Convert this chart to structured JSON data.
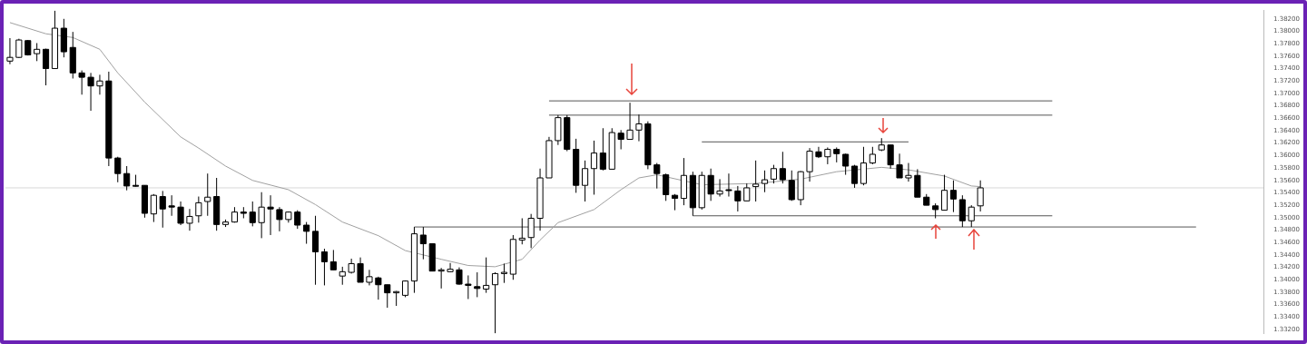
{
  "chart_data": {
    "type": "candlestick",
    "categories": [
      null,
      null,
      null,
      null,
      null,
      null,
      null,
      null,
      null,
      null,
      null,
      null,
      null,
      null,
      null,
      null,
      null,
      null,
      null,
      null,
      null,
      null,
      null,
      null,
      null,
      null,
      null,
      null,
      null,
      null,
      null,
      null,
      null,
      null,
      null,
      null,
      null,
      null,
      null,
      null,
      null,
      null,
      null,
      null,
      null,
      null,
      null,
      null,
      null,
      null,
      null,
      null,
      null,
      null,
      null,
      null,
      null,
      null,
      null,
      null,
      null,
      null,
      null,
      null,
      null,
      null,
      null,
      null,
      null,
      null,
      null,
      null,
      null,
      null,
      null,
      null,
      null,
      null,
      null,
      null,
      null,
      null,
      null,
      null,
      null,
      null,
      null,
      null,
      null,
      null,
      null,
      null,
      null,
      null,
      null,
      null,
      null,
      null,
      null,
      null,
      null,
      null,
      null,
      null,
      null,
      null,
      null,
      null,
      null,
      null,
      null,
      null,
      null,
      null,
      null,
      null,
      null,
      null,
      null,
      null,
      null,
      null,
      null,
      null,
      null,
      null,
      null,
      null,
      null,
      null,
      null,
      null,
      null,
      null,
      null,
      null,
      null,
      null,
      null,
      null
    ],
    "ohlc": [
      [
        1.3752,
        1.3789,
        1.3747,
        1.3758
      ],
      [
        1.3758,
        1.3788,
        1.3757,
        1.3786
      ],
      [
        1.3785,
        1.3786,
        1.3761,
        1.3762
      ],
      [
        1.3764,
        1.3781,
        1.3752,
        1.3771
      ],
      [
        1.3771,
        1.3772,
        1.3713,
        1.374
      ],
      [
        1.374,
        1.3833,
        1.374,
        1.3805
      ],
      [
        1.3805,
        1.382,
        1.3758,
        1.3767
      ],
      [
        1.3774,
        1.3799,
        1.3724,
        1.3733
      ],
      [
        1.3733,
        1.3737,
        1.3698,
        1.3726
      ],
      [
        1.3726,
        1.3733,
        1.3672,
        1.3712
      ],
      [
        1.3712,
        1.373,
        1.3698,
        1.372
      ],
      [
        1.372,
        1.3735,
        1.3583,
        1.3596
      ],
      [
        1.3596,
        1.3598,
        1.3557,
        1.3571
      ],
      [
        1.3571,
        1.3583,
        1.3544,
        1.3551
      ],
      [
        1.3552,
        1.3569,
        1.355,
        1.3551
      ],
      [
        1.3552,
        1.3552,
        1.35,
        1.3507
      ],
      [
        1.3506,
        1.3538,
        1.3493,
        1.3536
      ],
      [
        1.3534,
        1.3543,
        1.3484,
        1.3514
      ],
      [
        1.3519,
        1.3536,
        1.3503,
        1.3517
      ],
      [
        1.3517,
        1.3526,
        1.3488,
        1.3491
      ],
      [
        1.3491,
        1.3514,
        1.3479,
        1.3502
      ],
      [
        1.3503,
        1.3534,
        1.3492,
        1.3524
      ],
      [
        1.3526,
        1.3571,
        1.3503,
        1.3533
      ],
      [
        1.3534,
        1.3564,
        1.3479,
        1.3489
      ],
      [
        1.3489,
        1.3497,
        1.3485,
        1.3493
      ],
      [
        1.3493,
        1.3517,
        1.3492,
        1.3509
      ],
      [
        1.3509,
        1.3517,
        1.3499,
        1.3507
      ],
      [
        1.3509,
        1.3526,
        1.3486,
        1.3492
      ],
      [
        1.3492,
        1.3541,
        1.3467,
        1.3517
      ],
      [
        1.3517,
        1.3536,
        1.3472,
        1.3514
      ],
      [
        1.3513,
        1.3517,
        1.3478,
        1.3497
      ],
      [
        1.3497,
        1.351,
        1.3492,
        1.3509
      ],
      [
        1.3509,
        1.3512,
        1.3482,
        1.3488
      ],
      [
        1.3488,
        1.3493,
        1.3458,
        1.3478
      ],
      [
        1.3478,
        1.3503,
        1.3392,
        1.3445
      ],
      [
        1.3445,
        1.345,
        1.3391,
        1.3429
      ],
      [
        1.3429,
        1.3448,
        1.3416,
        1.3416
      ],
      [
        1.3406,
        1.3421,
        1.3392,
        1.3413
      ],
      [
        1.3412,
        1.3434,
        1.341,
        1.3426
      ],
      [
        1.3426,
        1.3436,
        1.3396,
        1.3396
      ],
      [
        1.3396,
        1.3416,
        1.3391,
        1.3405
      ],
      [
        1.3403,
        1.3405,
        1.3368,
        1.3392
      ],
      [
        1.3392,
        1.3392,
        1.3355,
        1.3379
      ],
      [
        1.3379,
        1.3382,
        1.3358,
        1.3381
      ],
      [
        1.3375,
        1.3399,
        1.3372,
        1.3398
      ],
      [
        1.3398,
        1.3485,
        1.3379,
        1.3474
      ],
      [
        1.3472,
        1.3485,
        1.3433,
        1.3458
      ],
      [
        1.3458,
        1.3458,
        1.3414,
        1.3414
      ],
      [
        1.3414,
        1.3419,
        1.3386,
        1.3416
      ],
      [
        1.3413,
        1.3427,
        1.3412,
        1.3417
      ],
      [
        1.3416,
        1.342,
        1.3392,
        1.3393
      ],
      [
        1.3393,
        1.3407,
        1.3369,
        1.3391
      ],
      [
        1.3389,
        1.3412,
        1.3372,
        1.3386
      ],
      [
        1.3385,
        1.3436,
        1.3379,
        1.3391
      ],
      [
        1.3392,
        1.3412,
        1.3314,
        1.341
      ],
      [
        1.341,
        1.3426,
        1.3395,
        1.3412
      ],
      [
        1.3409,
        1.3472,
        1.34,
        1.3465
      ],
      [
        1.3464,
        1.3499,
        1.3457,
        1.3467
      ],
      [
        1.3468,
        1.3506,
        1.3451,
        1.3499
      ],
      [
        1.3499,
        1.3579,
        1.3479,
        1.3564
      ],
      [
        1.3564,
        1.363,
        1.3564,
        1.3624
      ],
      [
        1.3624,
        1.3665,
        1.3617,
        1.3661
      ],
      [
        1.3661,
        1.3665,
        1.3607,
        1.361
      ],
      [
        1.361,
        1.3627,
        1.354,
        1.3552
      ],
      [
        1.3552,
        1.3592,
        1.3526,
        1.3579
      ],
      [
        1.3579,
        1.3624,
        1.3537,
        1.3604
      ],
      [
        1.3604,
        1.3644,
        1.3576,
        1.3578
      ],
      [
        1.3578,
        1.3644,
        1.3578,
        1.3637
      ],
      [
        1.3636,
        1.3641,
        1.361,
        1.3626
      ],
      [
        1.3626,
        1.3685,
        1.3626,
        1.3641
      ],
      [
        1.3641,
        1.3666,
        1.3623,
        1.3651
      ],
      [
        1.3651,
        1.3655,
        1.3578,
        1.3585
      ],
      [
        1.3585,
        1.3588,
        1.3547,
        1.3571
      ],
      [
        1.3569,
        1.3571,
        1.3527,
        1.3537
      ],
      [
        1.3536,
        1.3538,
        1.3512,
        1.3531
      ],
      [
        1.3531,
        1.3596,
        1.352,
        1.3568
      ],
      [
        1.3568,
        1.3574,
        1.3503,
        1.3516
      ],
      [
        1.3516,
        1.3574,
        1.3513,
        1.3568
      ],
      [
        1.3568,
        1.3579,
        1.3527,
        1.3538
      ],
      [
        1.3538,
        1.3562,
        1.3534,
        1.3543
      ],
      [
        1.3545,
        1.3571,
        1.3534,
        1.3544
      ],
      [
        1.3543,
        1.3551,
        1.351,
        1.3527
      ],
      [
        1.3527,
        1.3555,
        1.3527,
        1.3548
      ],
      [
        1.355,
        1.3592,
        1.3526,
        1.3554
      ],
      [
        1.3555,
        1.3576,
        1.3541,
        1.3561
      ],
      [
        1.3562,
        1.3585,
        1.3555,
        1.3579
      ],
      [
        1.3579,
        1.3606,
        1.3555,
        1.3561
      ],
      [
        1.356,
        1.3576,
        1.3527,
        1.3529
      ],
      [
        1.3529,
        1.3575,
        1.352,
        1.3574
      ],
      [
        1.3574,
        1.3612,
        1.3558,
        1.3607
      ],
      [
        1.3606,
        1.3614,
        1.3596,
        1.3598
      ],
      [
        1.3598,
        1.3613,
        1.3586,
        1.361
      ],
      [
        1.361,
        1.3613,
        1.3589,
        1.3603
      ],
      [
        1.3602,
        1.3603,
        1.3569,
        1.3583
      ],
      [
        1.3583,
        1.3585,
        1.3548,
        1.3555
      ],
      [
        1.3555,
        1.3614,
        1.3552,
        1.3588
      ],
      [
        1.3588,
        1.3614,
        1.3586,
        1.3602
      ],
      [
        1.3609,
        1.3628,
        1.3607,
        1.3617
      ],
      [
        1.3617,
        1.3617,
        1.3579,
        1.3585
      ],
      [
        1.3585,
        1.3603,
        1.3564,
        1.3564
      ],
      [
        1.3564,
        1.3588,
        1.3558,
        1.3568
      ],
      [
        1.3568,
        1.3578,
        1.3533,
        1.3533
      ],
      [
        1.3533,
        1.3538,
        1.352,
        1.352
      ],
      [
        1.3519,
        1.3523,
        1.3499,
        1.3513
      ],
      [
        1.3512,
        1.3569,
        1.3512,
        1.3544
      ],
      [
        1.3544,
        1.356,
        1.3509,
        1.353
      ],
      [
        1.3529,
        1.3536,
        1.3485,
        1.3495
      ],
      [
        1.3495,
        1.352,
        1.3485,
        1.3517
      ],
      [
        1.3519,
        1.356,
        1.351,
        1.3548
      ],
      null,
      null,
      null,
      null,
      null,
      null,
      null,
      null,
      null,
      null,
      null,
      null,
      null,
      null,
      null,
      null,
      null,
      null,
      null,
      null,
      null,
      null,
      null,
      null,
      null,
      null,
      null,
      null,
      null,
      null,
      null
    ],
    "series": [
      {
        "type": "line",
        "color": "#a0a0a0",
        "values": [
          1.3814,
          null,
          null,
          null,
          1.3796,
          null,
          null,
          1.379,
          null,
          null,
          1.3771,
          null,
          1.3733,
          null,
          null,
          1.3686,
          null,
          null,
          null,
          1.363,
          null,
          1.3612,
          null,
          null,
          1.3583,
          null,
          null,
          1.356,
          null,
          null,
          null,
          1.3545,
          null,
          null,
          1.3521,
          null,
          null,
          1.3493,
          null,
          null,
          null,
          1.3471,
          null,
          null,
          1.3447,
          null,
          null,
          null,
          1.3433,
          null,
          null,
          1.3423,
          null,
          null,
          1.3421,
          null,
          null,
          1.3433,
          null,
          1.3464,
          null,
          1.3492,
          null,
          null,
          null,
          1.3513,
          null,
          null,
          1.3545,
          null,
          1.3564,
          null,
          1.3569,
          null,
          null,
          null,
          null,
          1.3553,
          null,
          null,
          null,
          null,
          null,
          1.3555,
          null,
          null,
          null,
          null,
          1.3562,
          null,
          null,
          null,
          1.3574,
          null,
          null,
          null,
          null,
          1.3581,
          null,
          null,
          1.3577,
          null,
          null,
          null,
          1.3567,
          null,
          null,
          1.3551,
          1.355,
          null,
          null,
          null,
          null,
          null,
          null,
          null,
          null,
          null,
          null,
          null,
          null,
          null,
          null,
          null,
          null,
          null,
          null,
          null,
          null,
          null,
          null,
          null,
          null,
          null,
          null,
          null,
          null,
          null,
          null,
          null
        ]
      },
      {
        "type": "line",
        "color": "#555555",
        "values": [
          null,
          null,
          null,
          null,
          null,
          null,
          null,
          null,
          null,
          null,
          null,
          null,
          null,
          null,
          null,
          null,
          null,
          null,
          null,
          null,
          null,
          null,
          null,
          null,
          null,
          null,
          null,
          null,
          null,
          null,
          null,
          null,
          null,
          null,
          null,
          null,
          null,
          null,
          null,
          null,
          null,
          null,
          null,
          null,
          null,
          null,
          null,
          null,
          null,
          null,
          null,
          null,
          null,
          null,
          null,
          null,
          null,
          null,
          null,
          null,
          1.3688,
          null,
          null,
          null,
          null,
          null,
          null,
          null,
          null,
          null,
          null,
          null,
          null,
          null,
          null,
          null,
          null,
          null,
          null,
          null,
          null,
          null,
          null,
          null,
          null,
          null,
          null,
          null,
          null,
          null,
          null,
          null,
          null,
          null,
          null,
          null,
          null,
          null,
          null,
          null,
          null,
          null,
          null,
          null,
          null,
          null,
          null,
          null,
          null,
          null,
          null,
          null,
          null,
          null,
          null,
          null,
          1.3688,
          null,
          null,
          null,
          null,
          null,
          null,
          null,
          null,
          null,
          null,
          null,
          null,
          null,
          null,
          null,
          null,
          null,
          null,
          null,
          null,
          null,
          null,
          null
        ]
      },
      {
        "type": "line",
        "color": "#555555",
        "values": [
          null,
          null,
          null,
          null,
          null,
          null,
          null,
          null,
          null,
          null,
          null,
          null,
          null,
          null,
          null,
          null,
          null,
          null,
          null,
          null,
          null,
          null,
          null,
          null,
          null,
          null,
          null,
          null,
          null,
          null,
          null,
          null,
          null,
          null,
          null,
          null,
          null,
          null,
          null,
          null,
          null,
          null,
          null,
          null,
          null,
          null,
          null,
          null,
          null,
          null,
          null,
          null,
          null,
          null,
          null,
          null,
          null,
          null,
          null,
          null,
          1.3665,
          null,
          null,
          null,
          null,
          null,
          null,
          null,
          null,
          null,
          null,
          null,
          null,
          null,
          null,
          null,
          null,
          null,
          null,
          null,
          null,
          null,
          null,
          null,
          null,
          null,
          null,
          null,
          null,
          null,
          null,
          null,
          null,
          null,
          null,
          null,
          null,
          null,
          null,
          null,
          null,
          null,
          null,
          null,
          null,
          null,
          null,
          null,
          null,
          null,
          null,
          null,
          null,
          null,
          null,
          null,
          1.3665,
          null,
          null,
          null,
          null,
          null,
          null,
          null,
          null,
          null,
          null,
          null,
          null,
          null,
          null,
          null,
          null,
          null,
          null,
          null,
          null,
          null,
          null,
          null
        ]
      },
      {
        "type": "line",
        "color": "#555555",
        "values": [
          null,
          null,
          null,
          null,
          null,
          null,
          null,
          null,
          null,
          null,
          null,
          null,
          null,
          null,
          null,
          null,
          null,
          null,
          null,
          null,
          null,
          null,
          null,
          null,
          null,
          null,
          null,
          null,
          null,
          null,
          null,
          null,
          null,
          null,
          null,
          null,
          null,
          null,
          null,
          null,
          null,
          null,
          null,
          null,
          null,
          null,
          null,
          null,
          null,
          null,
          null,
          null,
          null,
          null,
          null,
          null,
          null,
          null,
          null,
          null,
          null,
          null,
          null,
          null,
          null,
          null,
          null,
          null,
          null,
          null,
          null,
          null,
          null,
          null,
          null,
          null,
          null,
          1.3622,
          null,
          null,
          null,
          null,
          null,
          null,
          null,
          null,
          null,
          null,
          null,
          null,
          null,
          null,
          null,
          null,
          null,
          null,
          null,
          null,
          null,
          null,
          1.3622,
          null,
          null,
          null,
          null,
          null,
          null,
          null,
          null,
          null,
          null,
          null,
          null,
          null,
          null,
          null,
          null,
          null,
          null,
          null,
          null,
          null,
          null,
          null,
          null,
          null,
          null,
          null,
          null,
          null,
          null,
          null,
          null,
          null,
          null,
          null,
          null,
          null,
          null,
          null
        ]
      },
      {
        "type": "line",
        "color": "#555555",
        "values": [
          null,
          null,
          null,
          null,
          null,
          null,
          null,
          null,
          null,
          null,
          null,
          null,
          null,
          null,
          null,
          null,
          null,
          null,
          null,
          null,
          null,
          null,
          null,
          null,
          null,
          null,
          null,
          null,
          null,
          null,
          null,
          null,
          null,
          null,
          null,
          null,
          null,
          null,
          null,
          null,
          null,
          null,
          null,
          null,
          null,
          null,
          null,
          null,
          null,
          null,
          null,
          null,
          null,
          null,
          null,
          null,
          null,
          null,
          null,
          null,
          null,
          null,
          null,
          null,
          null,
          null,
          null,
          null,
          null,
          null,
          null,
          null,
          null,
          null,
          null,
          null,
          1.3503,
          null,
          null,
          null,
          null,
          null,
          null,
          null,
          null,
          null,
          null,
          null,
          null,
          null,
          null,
          null,
          null,
          null,
          null,
          null,
          null,
          null,
          null,
          null,
          null,
          null,
          null,
          null,
          null,
          null,
          null,
          null,
          null,
          null,
          null,
          null,
          null,
          null,
          null,
          null,
          1.3503,
          null,
          null,
          null,
          null,
          null,
          null,
          null,
          null,
          null,
          null,
          null,
          null,
          null,
          null,
          null,
          null,
          null,
          null,
          null,
          null,
          null,
          null,
          null
        ]
      },
      {
        "type": "line",
        "color": "#555555",
        "values": [
          null,
          null,
          null,
          null,
          null,
          null,
          null,
          null,
          null,
          null,
          null,
          null,
          null,
          null,
          null,
          null,
          null,
          null,
          null,
          null,
          null,
          null,
          null,
          null,
          null,
          null,
          null,
          null,
          null,
          null,
          null,
          null,
          null,
          null,
          null,
          null,
          null,
          null,
          null,
          null,
          null,
          null,
          null,
          null,
          null,
          1.3485,
          null,
          null,
          null,
          null,
          null,
          null,
          null,
          null,
          null,
          null,
          null,
          null,
          null,
          null,
          null,
          null,
          null,
          null,
          null,
          null,
          null,
          null,
          null,
          null,
          null,
          null,
          null,
          null,
          null,
          null,
          null,
          null,
          null,
          null,
          null,
          null,
          null,
          null,
          null,
          null,
          null,
          null,
          null,
          null,
          null,
          null,
          null,
          null,
          null,
          null,
          null,
          null,
          null,
          null,
          null,
          null,
          null,
          null,
          null,
          null,
          null,
          null,
          null,
          null,
          null,
          null,
          null,
          null,
          null,
          null,
          null,
          null,
          null,
          null,
          null,
          null,
          null,
          null,
          null,
          null,
          null,
          null,
          null,
          null,
          null,
          null,
          1.3485,
          null,
          null,
          null,
          null,
          null,
          null,
          null
        ]
      }
    ],
    "ylim": [
      1.3313,
      1.3834
    ],
    "yticks": [
      {
        "value": 1.332,
        "label": "1.33200"
      },
      {
        "value": 1.334,
        "label": "1.33400"
      },
      {
        "value": 1.336,
        "label": "1.33600"
      },
      {
        "value": 1.338,
        "label": "1.33800"
      },
      {
        "value": 1.34,
        "label": "1.34000"
      },
      {
        "value": 1.342,
        "label": "1.34200"
      },
      {
        "value": 1.344,
        "label": "1.34400"
      },
      {
        "value": 1.346,
        "label": "1.34600"
      },
      {
        "value": 1.348,
        "label": "1.34800"
      },
      {
        "value": 1.35,
        "label": "1.35000"
      },
      {
        "value": 1.352,
        "label": "1.35200"
      },
      {
        "value": 1.354,
        "label": "1.35400"
      },
      {
        "value": 1.356,
        "label": "1.35600"
      },
      {
        "value": 1.358,
        "label": "1.35800"
      },
      {
        "value": 1.36,
        "label": "1.36000"
      },
      {
        "value": 1.362,
        "label": "1.36200"
      },
      {
        "value": 1.364,
        "label": "1.36400"
      },
      {
        "value": 1.366,
        "label": "1.36600"
      },
      {
        "value": 1.368,
        "label": "1.36800"
      },
      {
        "value": 1.37,
        "label": "1.37000"
      },
      {
        "value": 1.372,
        "label": "1.37200"
      },
      {
        "value": 1.374,
        "label": "1.37400"
      },
      {
        "value": 1.376,
        "label": "1.37600"
      },
      {
        "value": 1.378,
        "label": "1.37800"
      },
      {
        "value": 1.38,
        "label": "1.38000"
      },
      {
        "value": 1.382,
        "label": "1.38200"
      }
    ],
    "ref_lines": [
      {
        "axis": "y",
        "value": 1.3548,
        "color": "#d8d8d8"
      }
    ],
    "tick_labels": "y"
  }
}
